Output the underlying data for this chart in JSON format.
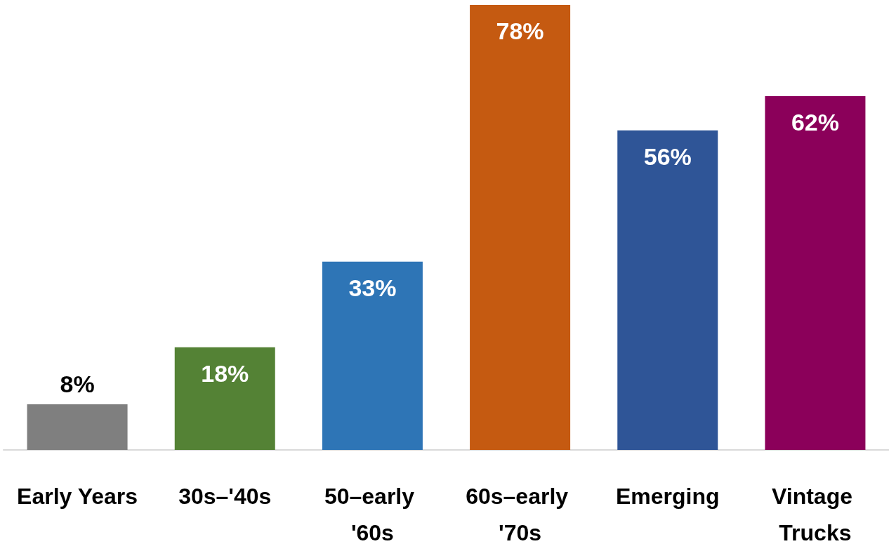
{
  "chart_data": {
    "type": "bar",
    "categories": [
      "Early Years",
      "30s–'40s",
      "50–early '60s",
      "60s–early '70s",
      "Emerging",
      "Vintage Trucks"
    ],
    "values": [
      8,
      18,
      33,
      78,
      56,
      62
    ],
    "colors": [
      "#7f7f7f",
      "#548235",
      "#2e75b6",
      "#c55a11",
      "#2f5597",
      "#8b005a"
    ],
    "value_labels": [
      "8%",
      "18%",
      "33%",
      "78%",
      "56%",
      "62%"
    ],
    "grid": false
  }
}
